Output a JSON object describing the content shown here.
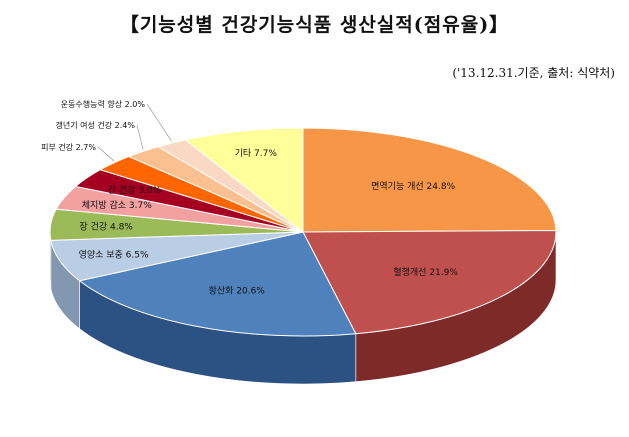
{
  "chart_data": {
    "type": "pie",
    "title": "【기능성별  건강기능식품  생산실적(점유율)】",
    "subtitle": "('13.12.31.기준, 출처: 식약처)",
    "slices": [
      {
        "label": "면역기능 개선",
        "value": 24.8,
        "display": "면역기능 개선 24.8%",
        "color": "#F79646",
        "side": "#C0661A"
      },
      {
        "label": "혈행개선",
        "value": 21.9,
        "display": "혈행개선 21.9%",
        "color": "#C0504D",
        "side": "#7E2A28"
      },
      {
        "label": "항산화",
        "value": 20.6,
        "display": "항산화 20.6%",
        "color": "#4F81BD",
        "side": "#2C5283"
      },
      {
        "label": "영양소 보충",
        "value": 6.5,
        "display": "영양소 보충 6.5%",
        "color": "#B9CDE5",
        "side": "#8497B0"
      },
      {
        "label": "장 건강",
        "value": 4.8,
        "display": "장 건강 4.8%",
        "color": "#9BBB59",
        "side": "#6A8A2E"
      },
      {
        "label": "체지방 감소",
        "value": 3.7,
        "display": "체지방 감소 3.7%",
        "color": "#F2A0A0",
        "side": "#C07070"
      },
      {
        "label": "간 건강",
        "value": 3.0,
        "display": "간 건강 3.0%",
        "color": "#A50021",
        "side": "#6A0015"
      },
      {
        "label": "피부 건강",
        "value": 2.7,
        "display": "피부 건강 2.7%",
        "color": "#FF6600",
        "side": "#B84800"
      },
      {
        "label": "갱년기 여성 건강",
        "value": 2.4,
        "display": "갱년기 여성 건강 2.4%",
        "color": "#FAC090",
        "side": "#C08F60"
      },
      {
        "label": "운동수행능력 향상",
        "value": 2.0,
        "display": "운동수행능력 향상 2.0%",
        "color": "#F9D9C4",
        "side": "#C8A690"
      },
      {
        "label": "기타",
        "value": 7.7,
        "display": "기타 7.7%",
        "color": "#FFFF99",
        "side": "#C9C960"
      }
    ]
  }
}
